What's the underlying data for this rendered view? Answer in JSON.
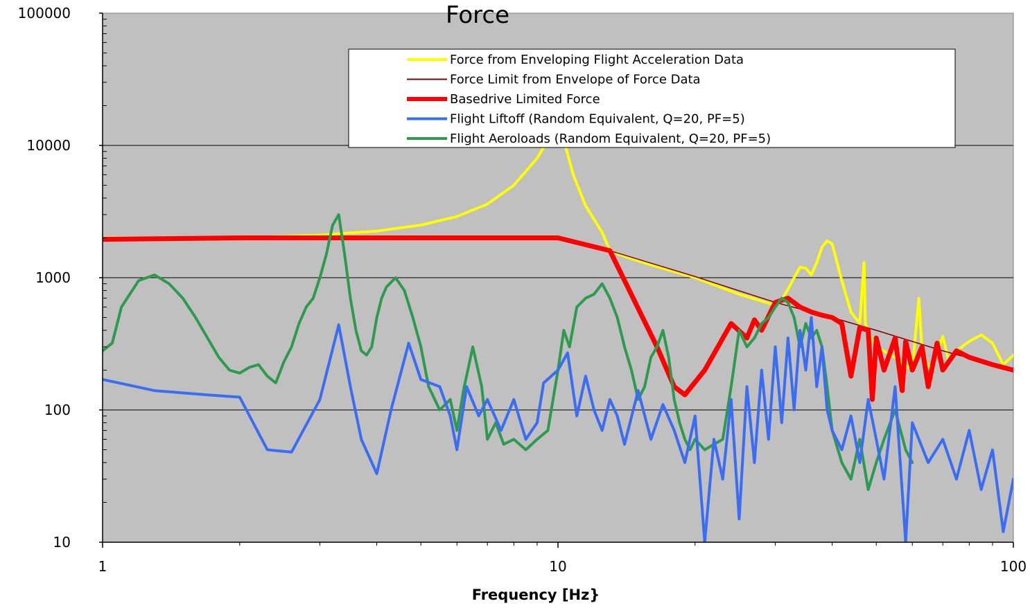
{
  "chart_data": {
    "type": "line",
    "title": "Force",
    "xlabel": "Frequency [Hz}",
    "ylabel": "",
    "xscale": "log",
    "yscale": "log",
    "xlim": [
      1,
      100
    ],
    "ylim": [
      10,
      100000
    ],
    "grid": "horizontal major lines",
    "plot_background": "#c0c0c0",
    "legend_position": "top-center",
    "x_ticks": [
      {
        "value": 1,
        "label": "1"
      },
      {
        "value": 10,
        "label": "10"
      },
      {
        "value": 100,
        "label": "100"
      }
    ],
    "y_ticks": [
      {
        "value": 10,
        "label": "10"
      },
      {
        "value": 100,
        "label": "100"
      },
      {
        "value": 1000,
        "label": "1000"
      },
      {
        "value": 10000,
        "label": "10000"
      },
      {
        "value": 100000,
        "label": "100000"
      }
    ],
    "series": [
      {
        "name": "Force from Enveloping Flight Acceleration Data",
        "color": "#ffff00",
        "x": [
          1,
          2,
          3,
          4,
          5,
          6,
          7,
          8,
          9,
          9.5,
          9.9,
          10,
          10.3,
          10.8,
          11.5,
          12.5,
          13,
          14,
          16,
          20,
          25,
          30,
          31,
          32,
          33,
          34,
          35,
          36,
          37,
          38,
          39,
          40,
          42,
          44,
          46,
          47,
          47.3,
          47.6,
          48,
          50,
          55,
          60,
          62,
          63,
          64,
          66,
          70,
          72,
          75,
          80,
          85,
          90,
          95,
          100
        ],
        "y": [
          2000,
          2000,
          2100,
          2250,
          2500,
          2900,
          3600,
          5000,
          8000,
          11000,
          14000,
          14000,
          11000,
          6000,
          3500,
          2200,
          1600,
          1450,
          1250,
          1000,
          750,
          620,
          680,
          820,
          1000,
          1200,
          1180,
          1050,
          1300,
          1700,
          1900,
          1800,
          950,
          550,
          450,
          1300,
          450,
          420,
          380,
          300,
          250,
          200,
          700,
          280,
          240,
          200,
          360,
          240,
          280,
          330,
          370,
          320,
          220,
          260
        ]
      },
      {
        "name": "Force Limit from Envelope of Force Data",
        "color": "#800000",
        "x": [
          1,
          2,
          5,
          10,
          13,
          20,
          30,
          40,
          50,
          70,
          100
        ],
        "y": [
          1950,
          2000,
          2000,
          2000,
          1600,
          1020,
          650,
          500,
          400,
          280,
          200
        ]
      },
      {
        "name": "Basedrive Limited Force",
        "color": "#ff0000",
        "x": [
          1,
          2,
          5,
          10,
          13,
          16.5,
          18,
          19,
          21,
          24,
          26,
          27,
          28,
          30,
          32,
          34,
          36,
          38,
          40,
          42,
          44,
          46,
          48,
          49,
          50,
          52,
          55,
          57,
          58,
          60,
          63,
          65,
          68,
          70,
          75,
          80,
          90,
          100
        ],
        "y": [
          1950,
          2000,
          2000,
          2000,
          1600,
          300,
          150,
          130,
          200,
          450,
          350,
          480,
          400,
          650,
          700,
          600,
          550,
          520,
          500,
          450,
          180,
          420,
          400,
          120,
          350,
          200,
          350,
          140,
          330,
          200,
          300,
          150,
          320,
          200,
          280,
          250,
          220,
          200
        ]
      },
      {
        "name": "Flight Liftoff (Random Equivalent, Q=20, PF=5)",
        "color": "#3b6cf5",
        "x": [
          1,
          1.3,
          1.7,
          2,
          2.3,
          2.6,
          3,
          3.3,
          3.5,
          3.7,
          4,
          4.3,
          4.7,
          5,
          5.5,
          5.8,
          6,
          6.3,
          6.7,
          7,
          7.5,
          8,
          8.5,
          9,
          9.3,
          10,
          10.5,
          11,
          11.5,
          12,
          12.5,
          13,
          13.5,
          14,
          15,
          16,
          17,
          18,
          19,
          20,
          21,
          22,
          23,
          24,
          25,
          26,
          27,
          28,
          29,
          30,
          31,
          32,
          33,
          34,
          35,
          36,
          37,
          38,
          39,
          40,
          42,
          44,
          46,
          48,
          50,
          52,
          55,
          58,
          60,
          65,
          70,
          75,
          80,
          85,
          90,
          95,
          100
        ],
        "y": [
          170,
          140,
          130,
          125,
          50,
          48,
          120,
          440,
          150,
          60,
          33,
          100,
          320,
          170,
          150,
          90,
          50,
          150,
          90,
          120,
          70,
          120,
          60,
          80,
          160,
          200,
          270,
          90,
          180,
          100,
          70,
          120,
          90,
          55,
          140,
          60,
          110,
          70,
          40,
          90,
          10,
          60,
          30,
          120,
          15,
          150,
          40,
          200,
          60,
          300,
          80,
          350,
          100,
          400,
          200,
          500,
          150,
          300,
          100,
          70,
          50,
          90,
          40,
          120,
          60,
          30,
          150,
          10,
          80,
          40,
          60,
          30,
          70,
          25,
          50,
          12,
          30
        ]
      },
      {
        "name": "Flight Aeroloads (Random Equivalent, Q=20, PF=5)",
        "color": "#2e9a50",
        "x": [
          1,
          1.05,
          1.1,
          1.2,
          1.3,
          1.4,
          1.5,
          1.6,
          1.7,
          1.8,
          1.9,
          2,
          2.1,
          2.2,
          2.3,
          2.4,
          2.5,
          2.6,
          2.7,
          2.8,
          2.9,
          3,
          3.1,
          3.2,
          3.3,
          3.4,
          3.5,
          3.6,
          3.7,
          3.8,
          3.9,
          4,
          4.1,
          4.2,
          4.4,
          4.6,
          4.8,
          5,
          5.2,
          5.5,
          5.8,
          6,
          6.2,
          6.5,
          6.8,
          7,
          7.3,
          7.6,
          8,
          8.5,
          9,
          9.5,
          10,
          10.3,
          10.6,
          11,
          11.5,
          12,
          12.5,
          13,
          13.5,
          14,
          14.5,
          15,
          15.5,
          16,
          16.5,
          17,
          17.5,
          18,
          18.5,
          19,
          19.5,
          20,
          21,
          22,
          23,
          24,
          25,
          26,
          27,
          28,
          29,
          30,
          31,
          32,
          33,
          34,
          35,
          36,
          37,
          38,
          39,
          40,
          42,
          44,
          46,
          48,
          50,
          52,
          55,
          58,
          60
        ],
        "y": [
          280,
          320,
          600,
          950,
          1050,
          900,
          700,
          500,
          350,
          250,
          200,
          190,
          210,
          220,
          180,
          160,
          230,
          300,
          450,
          600,
          700,
          1000,
          1500,
          2500,
          3000,
          1500,
          700,
          400,
          280,
          260,
          300,
          500,
          700,
          850,
          1000,
          800,
          500,
          300,
          150,
          100,
          120,
          70,
          140,
          300,
          150,
          60,
          80,
          55,
          60,
          50,
          60,
          70,
          200,
          400,
          300,
          600,
          700,
          750,
          900,
          700,
          500,
          300,
          200,
          120,
          150,
          250,
          300,
          400,
          250,
          120,
          80,
          60,
          50,
          60,
          50,
          55,
          60,
          150,
          400,
          300,
          350,
          450,
          500,
          600,
          700,
          650,
          500,
          300,
          450,
          350,
          400,
          300,
          150,
          70,
          40,
          30,
          60,
          25,
          40,
          60,
          100,
          50,
          40
        ]
      }
    ]
  }
}
